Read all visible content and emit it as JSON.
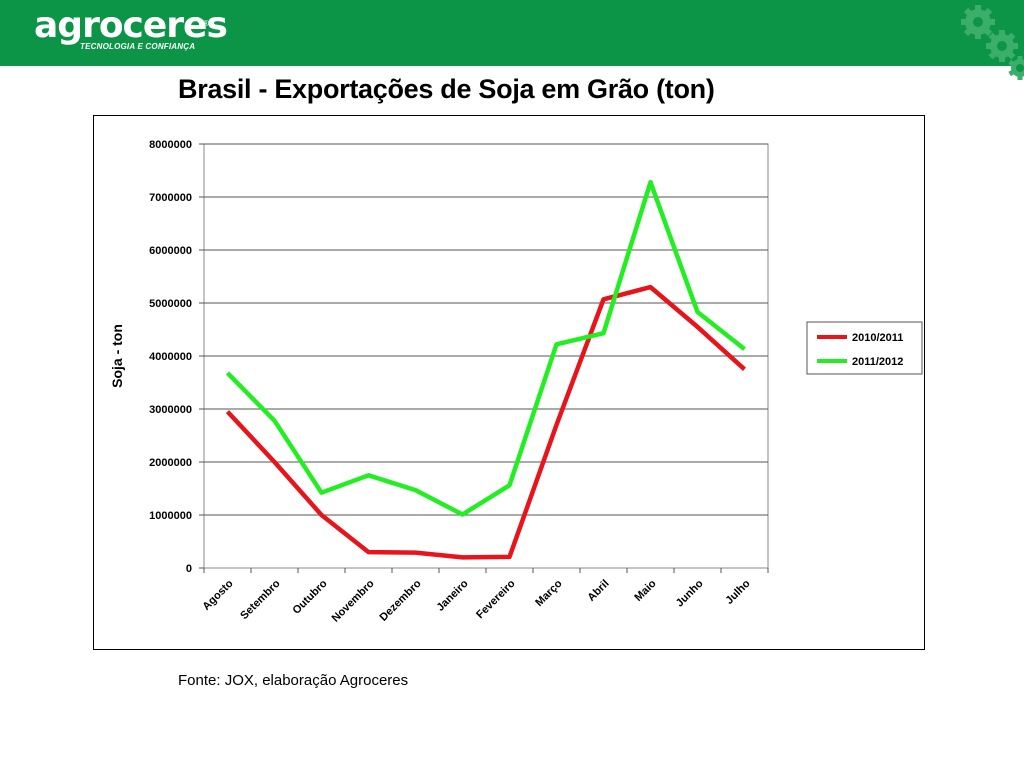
{
  "brand": {
    "name": "agroceres",
    "registered_mark": "®",
    "tagline": "TECNOLOGIA E CONFIANÇA",
    "bar_color": "#0d9547"
  },
  "slide": {
    "title": "Brasil - Exportações de Soja em Grão (ton)",
    "source": "Fonte: JOX, elaboração Agroceres"
  },
  "chart_data": {
    "type": "line",
    "ylabel": "Soja - ton",
    "xlabel": "",
    "ylim": [
      0,
      8000000
    ],
    "yticks": [
      "0",
      "1000000",
      "2000000",
      "3000000",
      "4000000",
      "5000000",
      "6000000",
      "7000000",
      "8000000"
    ],
    "categories": [
      "Agosto",
      "Setembro",
      "Outubro",
      "Novembro",
      "Dezembro",
      "Janeiro",
      "Fevereiro",
      "Março",
      "Abril",
      "Maio",
      "Junho",
      "Julho"
    ],
    "grid": true,
    "legend_position": "right",
    "series": [
      {
        "name": "2010/2011",
        "color": "#e8141b",
        "values": [
          2950000,
          2000000,
          1000000,
          300000,
          290000,
          200000,
          210000,
          2700000,
          5070000,
          5300000,
          4550000,
          3750000
        ]
      },
      {
        "name": "2011/2012",
        "color": "#22ee22",
        "values": [
          3680000,
          2780000,
          1420000,
          1750000,
          1470000,
          1010000,
          1560000,
          4220000,
          4430000,
          7280000,
          4830000,
          4130000
        ]
      }
    ]
  }
}
